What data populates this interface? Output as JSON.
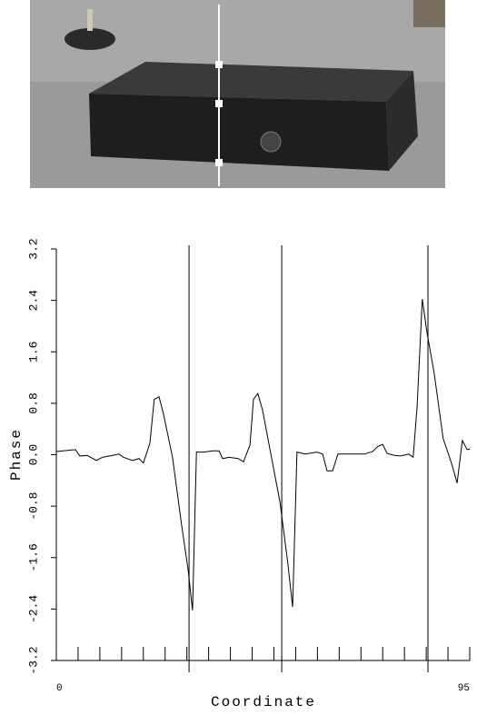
{
  "chart_data": {
    "type": "line",
    "xlabel": "Coordinate",
    "ylabel": "Phase",
    "xlim": [
      0,
      95
    ],
    "ylim": [
      -3.2,
      3.2
    ],
    "xticks": [
      0,
      95
    ],
    "xminor_ticks": [
      5,
      10,
      15,
      20,
      25,
      30,
      35,
      40,
      45,
      50,
      55,
      60,
      65,
      70,
      75,
      80,
      85,
      90
    ],
    "yticks": [
      -3.2,
      -2.4,
      -1.6,
      -0.8,
      {
        "value": 0,
        "label": "0.0"
      },
      0.8,
      1.6,
      2.4,
      3.2
    ],
    "markers": [
      30.5,
      51.8,
      85.4
    ],
    "color": "#000000",
    "x": [
      0,
      4.4,
      5.4,
      7.1,
      9.2,
      10.6,
      12.9,
      14.4,
      15.4,
      17.5,
      19,
      20,
      21.5,
      22.5,
      23.6,
      24.6,
      26.7,
      28.8,
      30.3,
      31.3,
      32.2,
      34,
      35.9,
      37.4,
      38.2,
      39.7,
      41.8,
      43,
      44.5,
      45.3,
      46.3,
      47.4,
      49.3,
      51.4,
      53.2,
      54.3,
      55.3,
      57.2,
      59.9,
      61.2,
      62.2,
      63.5,
      64.7,
      66.4,
      68.9,
      70.8,
      72.7,
      73.9,
      75,
      76,
      77.7,
      79.1,
      81,
      82,
      82.9,
      84.1,
      85.2,
      86.8,
      88.9,
      90.8,
      92.1,
      93.3,
      94.4,
      95
    ],
    "values": [
      0.05,
      0.08,
      -0.02,
      -0.01,
      -0.09,
      -0.04,
      -0.01,
      0.01,
      -0.04,
      -0.09,
      -0.06,
      -0.13,
      0.18,
      0.86,
      0.9,
      0.64,
      -0.04,
      -1.1,
      -1.8,
      -2.42,
      0.04,
      0.04,
      0.06,
      0.06,
      -0.06,
      -0.04,
      -0.06,
      -0.11,
      0.15,
      0.86,
      0.95,
      0.69,
      0.01,
      -0.74,
      -1.69,
      -2.37,
      0.04,
      0.01,
      0.04,
      0.01,
      -0.25,
      -0.25,
      0.01,
      0.01,
      0.01,
      0.01,
      0.05,
      0.13,
      0.16,
      0.02,
      -0.01,
      -0.02,
      0.01,
      -0.04,
      0.74,
      2.42,
      1.89,
      1.28,
      0.25,
      -0.13,
      -0.44,
      0.22,
      0.08,
      0.09
    ]
  }
}
